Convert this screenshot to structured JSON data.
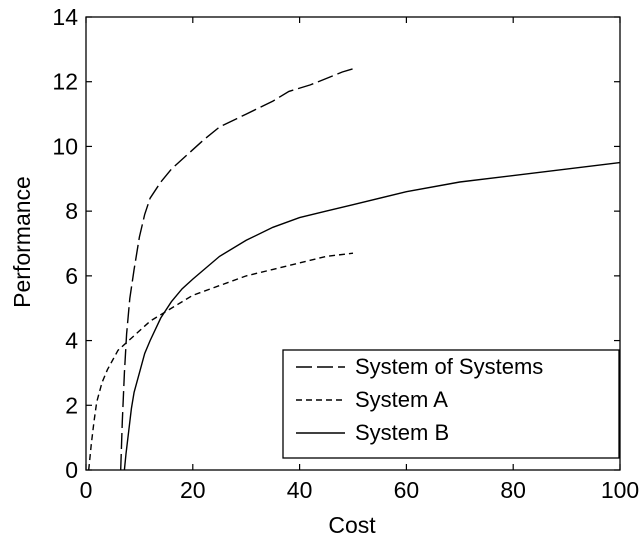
{
  "chart_data": {
    "type": "line",
    "title": "",
    "xlabel": "Cost",
    "ylabel": "Performance",
    "xlim": [
      0,
      100
    ],
    "ylim": [
      0,
      14
    ],
    "xticks": [
      0,
      20,
      40,
      60,
      80,
      100
    ],
    "yticks": [
      0,
      2,
      4,
      6,
      8,
      10,
      12,
      14
    ],
    "grid": false,
    "legend_position": "bottom-right",
    "series": [
      {
        "name": "System of Systems",
        "style": "long-dash",
        "color": "#000000",
        "x": [
          6.5,
          6.8,
          7.2,
          7.6,
          8.2,
          9,
          10,
          11,
          12,
          14,
          16,
          18,
          20,
          22,
          25,
          30,
          35,
          38,
          42,
          45,
          48,
          50
        ],
        "y": [
          0,
          1.5,
          3.0,
          4.2,
          5.3,
          6.2,
          7.2,
          7.9,
          8.4,
          8.9,
          9.3,
          9.6,
          9.9,
          10.2,
          10.6,
          11.0,
          11.4,
          11.7,
          11.9,
          12.1,
          12.3,
          12.4
        ]
      },
      {
        "name": "System A",
        "style": "short-dash",
        "color": "#000000",
        "x": [
          0.5,
          1,
          1.5,
          2,
          3,
          4,
          5,
          6,
          8,
          10,
          12,
          15,
          20,
          25,
          30,
          35,
          40,
          45,
          50
        ],
        "y": [
          0,
          0.8,
          1.5,
          2.1,
          2.7,
          3.1,
          3.4,
          3.7,
          4.0,
          4.3,
          4.6,
          4.9,
          5.4,
          5.7,
          6.0,
          6.2,
          6.4,
          6.6,
          6.7
        ]
      },
      {
        "name": "System B",
        "style": "solid",
        "color": "#000000",
        "x": [
          7.2,
          7.5,
          8,
          8.5,
          9,
          10,
          11,
          12,
          14,
          16,
          18,
          20,
          25,
          30,
          35,
          40,
          45,
          50,
          60,
          70,
          80,
          90,
          100
        ],
        "y": [
          0,
          0.5,
          1.2,
          1.9,
          2.4,
          3.0,
          3.6,
          4.0,
          4.7,
          5.2,
          5.6,
          5.9,
          6.6,
          7.1,
          7.5,
          7.8,
          8.0,
          8.2,
          8.6,
          8.9,
          9.1,
          9.3,
          9.5
        ]
      }
    ]
  }
}
